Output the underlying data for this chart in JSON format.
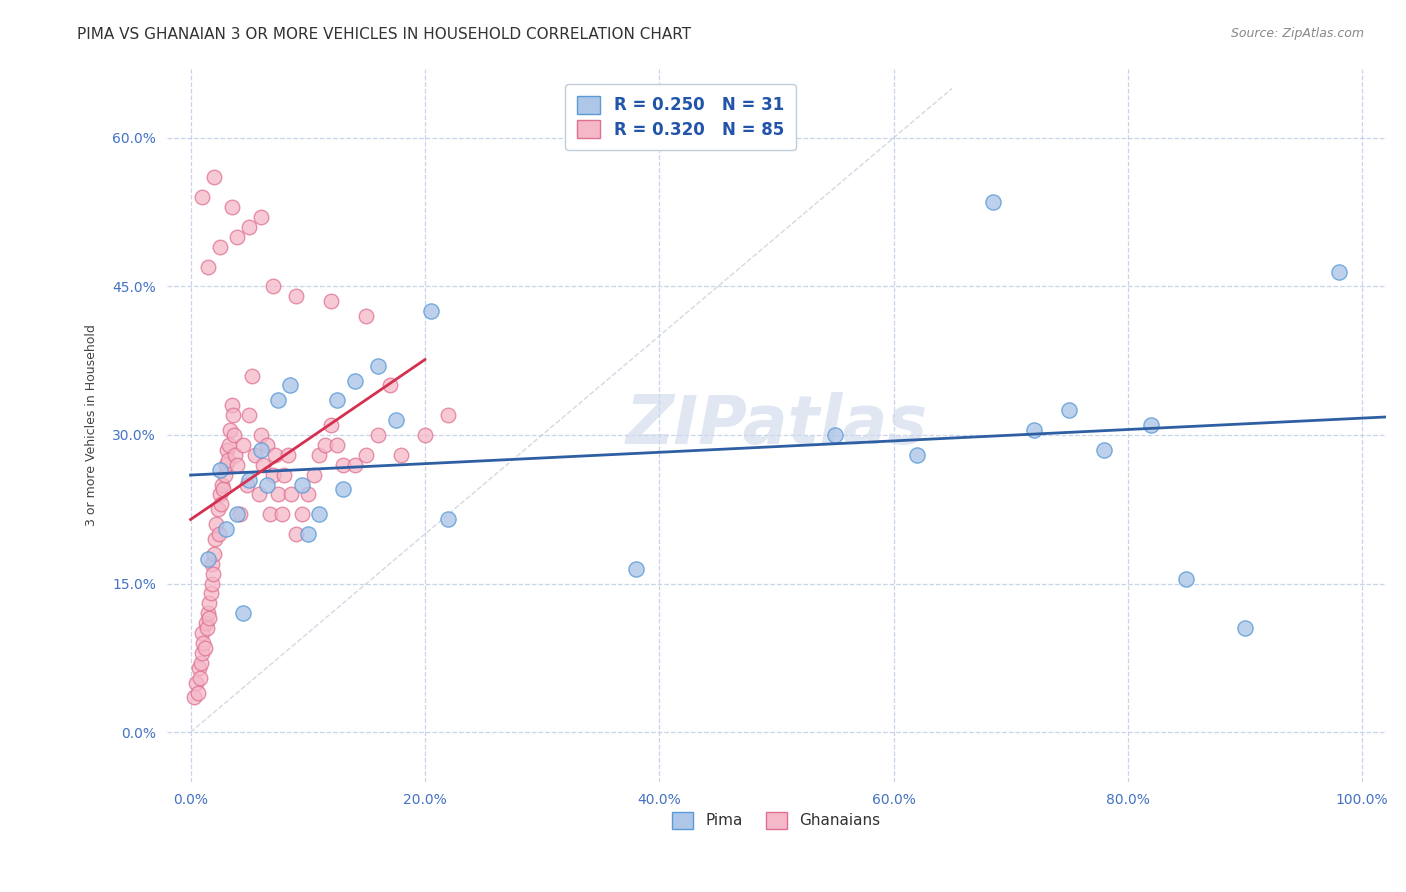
{
  "title": "PIMA VS GHANAIAN 3 OR MORE VEHICLES IN HOUSEHOLD CORRELATION CHART",
  "source": "Source: ZipAtlas.com",
  "xlabel_vals": [
    0.0,
    20.0,
    40.0,
    60.0,
    80.0,
    100.0
  ],
  "ylabel": "3 or more Vehicles in Household",
  "ylabel_vals": [
    0.0,
    15.0,
    30.0,
    45.0,
    60.0
  ],
  "pima_color": "#aec6e8",
  "pima_edge_color": "#5b9bd5",
  "ghanaian_color": "#f4b8c8",
  "ghanaian_edge_color": "#e07090",
  "trendline_pima_color": "#2e5fa3",
  "trendline_ghanaian_color": "#d43050",
  "legend_text_color": "#2255aa",
  "watermark_color": "#ccd8ea",
  "pima_R": 0.25,
  "pima_N": 31,
  "ghanaian_R": 0.32,
  "ghanaian_N": 85,
  "pima_x": [
    1.5,
    3.0,
    4.0,
    5.0,
    6.0,
    7.5,
    8.5,
    9.5,
    11.0,
    12.5,
    14.0,
    16.0,
    20.5,
    38.0,
    55.0,
    62.0,
    68.5,
    72.0,
    75.0,
    78.0,
    82.0,
    85.0,
    90.0,
    98.0,
    2.5,
    6.5,
    10.0,
    13.0,
    17.5,
    22.0,
    4.5
  ],
  "pima_y": [
    17.5,
    20.5,
    22.0,
    25.5,
    28.5,
    33.5,
    35.0,
    25.0,
    22.0,
    33.5,
    35.5,
    37.0,
    42.5,
    16.5,
    30.0,
    28.0,
    53.5,
    30.5,
    32.5,
    28.5,
    31.0,
    15.5,
    10.5,
    46.5,
    26.5,
    25.0,
    20.0,
    24.5,
    31.5,
    21.5,
    12.0
  ],
  "ghanaian_x": [
    0.3,
    0.5,
    0.6,
    0.7,
    0.8,
    0.9,
    1.0,
    1.0,
    1.1,
    1.2,
    1.3,
    1.4,
    1.5,
    1.6,
    1.6,
    1.7,
    1.8,
    1.8,
    1.9,
    2.0,
    2.1,
    2.2,
    2.3,
    2.4,
    2.5,
    2.6,
    2.7,
    2.8,
    2.9,
    3.0,
    3.1,
    3.2,
    3.3,
    3.4,
    3.5,
    3.6,
    3.7,
    3.8,
    4.0,
    4.2,
    4.5,
    4.8,
    5.0,
    5.2,
    5.5,
    5.8,
    6.0,
    6.2,
    6.5,
    6.8,
    7.0,
    7.2,
    7.5,
    7.8,
    8.0,
    8.3,
    8.6,
    9.0,
    9.5,
    10.0,
    10.5,
    11.0,
    11.5,
    12.0,
    12.5,
    13.0,
    14.0,
    15.0,
    16.0,
    17.0,
    18.0,
    20.0,
    22.0,
    1.5,
    2.5,
    3.5,
    5.0,
    7.0,
    9.0,
    12.0,
    15.0,
    1.0,
    2.0,
    4.0,
    6.0
  ],
  "ghanaian_y": [
    3.5,
    5.0,
    4.0,
    6.5,
    5.5,
    7.0,
    8.0,
    10.0,
    9.0,
    8.5,
    11.0,
    10.5,
    12.0,
    11.5,
    13.0,
    14.0,
    15.0,
    17.0,
    16.0,
    18.0,
    19.5,
    21.0,
    22.5,
    20.0,
    24.0,
    23.0,
    25.0,
    24.5,
    26.0,
    27.0,
    28.5,
    27.5,
    29.0,
    30.5,
    33.0,
    32.0,
    30.0,
    28.0,
    27.0,
    22.0,
    29.0,
    25.0,
    32.0,
    36.0,
    28.0,
    24.0,
    30.0,
    27.0,
    29.0,
    22.0,
    26.0,
    28.0,
    24.0,
    22.0,
    26.0,
    28.0,
    24.0,
    20.0,
    22.0,
    24.0,
    26.0,
    28.0,
    29.0,
    31.0,
    29.0,
    27.0,
    27.0,
    28.0,
    30.0,
    35.0,
    28.0,
    30.0,
    32.0,
    47.0,
    49.0,
    53.0,
    51.0,
    45.0,
    44.0,
    43.5,
    42.0,
    54.0,
    56.0,
    50.0,
    52.0
  ],
  "background_color": "#ffffff",
  "grid_color": "#c8d4e8",
  "title_fontsize": 11,
  "axis_label_fontsize": 9,
  "tick_fontsize": 10,
  "legend_fontsize": 12
}
